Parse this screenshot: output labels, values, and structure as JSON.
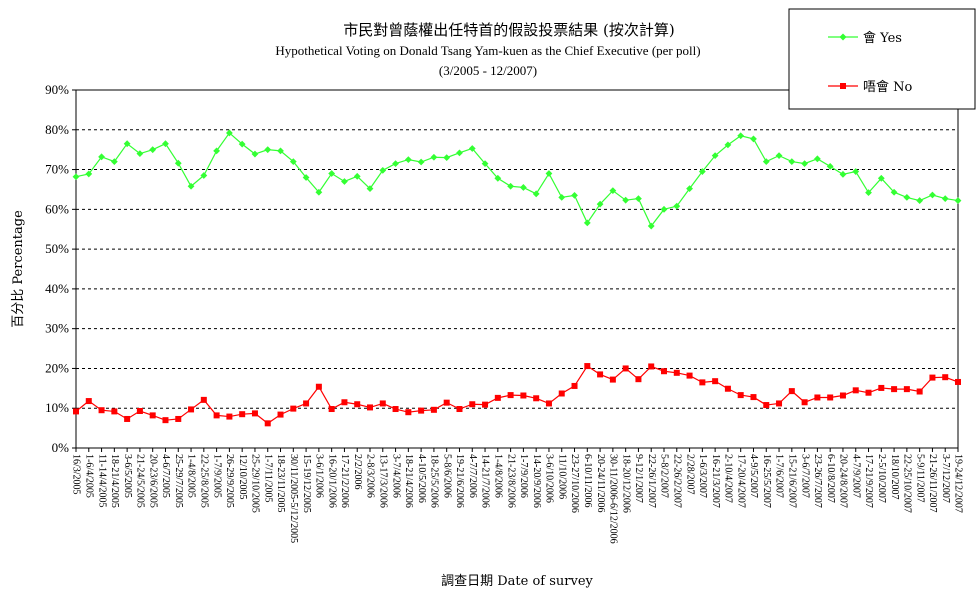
{
  "chart_data": {
    "type": "line",
    "title": "市民對曾蔭權出任特首的假設投票結果 (按次計算)",
    "subtitle": "Hypothetical Voting on Donald Tsang Yam-kuen as the Chief Executive (per poll)",
    "period": "(3/2005 - 12/2007)",
    "xlabel": "調查日期 Date of survey",
    "ylabel": "百分比 Percentage",
    "ylim": [
      0,
      90
    ],
    "yticks": [
      "0%",
      "10%",
      "20%",
      "30%",
      "40%",
      "50%",
      "60%",
      "70%",
      "80%",
      "90%"
    ],
    "grid": "horizontal dashed",
    "legend_position": "top-right",
    "categories": [
      "16/3/2005",
      "1-6/4/2005",
      "11-14/4/2005",
      "18-21/4/2005",
      "3-6/5/2005",
      "21-24/5/2005",
      "20-23/6/2005",
      "4-6/7/2005",
      "25-29/7/2005",
      "1-4/8/2005",
      "22-25/8/2005",
      "1-7/9/2005",
      "26-29/9/2005",
      "12/10/2005",
      "25-29/10/2005",
      "1-7/11/2005",
      "18-23/11/2005",
      "30/11/2005-5/12/2005",
      "15-19/12/2005",
      "3-6/1/2006",
      "16-20/1/2006",
      "17-21/2/2006",
      "2/2/2006",
      "2-8/3/2006",
      "13-17/3/2006",
      "3-7/4/2006",
      "18-21/4/2006",
      "4-10/5/2006",
      "18-25/5/2006",
      "5-8/6/2006",
      "19-21/6/2006",
      "4-7/7/2006",
      "14-21/7/2006",
      "1-4/8/2006",
      "21-23/8/2006",
      "1-7/9/2006",
      "14-20/9/2006",
      "3-6/10/2006",
      "11/10/2006",
      "23-27/10/2006",
      "6-10/11/2006",
      "20-24/11/2006",
      "30-11/2006-6/12/2006",
      "18-20/12/2006",
      "9-12/1/2007",
      "22-26/1/2007",
      "5-8/2/2007",
      "22-26/2/2007",
      "2/28/2007",
      "1-6/3/2007",
      "16-21/3/2007",
      "2-10/4/2007",
      "17-20/4/2007",
      "4-9/5/2007",
      "16-25/5/2007",
      "1-7/6/2007",
      "15-21/6/2007",
      "3-6/7/2007",
      "23-26/7/2007",
      "6-10/8/2007",
      "20-24/8/2007",
      "4-7/9/2007",
      "17-21/9/2007",
      "2-5/10/2007",
      "18/10/2007",
      "22-25/10/2007",
      "5-9/11/2007",
      "21-26/11/2007",
      "3-7/12/2007",
      "19-24/12/2007"
    ],
    "series": [
      {
        "name": "會 Yes",
        "color": "#33ff33",
        "marker": "diamond",
        "values": [
          68.2,
          68.9,
          73.2,
          72.0,
          76.5,
          74.0,
          75.0,
          76.5,
          71.6,
          65.8,
          68.5,
          74.7,
          79.2,
          76.4,
          73.9,
          75.0,
          74.7,
          72.0,
          68.0,
          64.3,
          69.0,
          67.0,
          68.3,
          65.2,
          69.8,
          71.5,
          72.5,
          71.9,
          73.1,
          73.0,
          74.2,
          75.3,
          71.5,
          67.8,
          65.8,
          65.5,
          63.9,
          69.0,
          63.0,
          63.5,
          56.6,
          61.3,
          64.7,
          62.3,
          62.7,
          55.8,
          60.0,
          60.8,
          65.2,
          69.5,
          73.5,
          76.2,
          78.5,
          77.7,
          72.0,
          73.5,
          72.0,
          71.5,
          72.7,
          70.8,
          68.8,
          69.5,
          64.2,
          67.8,
          64.3,
          63.0,
          62.2,
          63.6,
          62.7,
          62.2
        ]
      },
      {
        "name": "唔會 No",
        "color": "#ff0000",
        "marker": "square",
        "values": [
          9.2,
          11.8,
          9.5,
          9.2,
          7.3,
          9.3,
          8.2,
          7.0,
          7.3,
          9.7,
          12.1,
          8.2,
          7.9,
          8.5,
          8.7,
          6.2,
          8.4,
          9.9,
          11.2,
          15.4,
          9.8,
          11.5,
          11.0,
          10.2,
          11.2,
          9.8,
          9.0,
          9.4,
          9.6,
          11.4,
          9.8,
          11.0,
          10.9,
          12.6,
          13.3,
          13.2,
          12.5,
          11.2,
          13.7,
          15.6,
          20.6,
          18.5,
          17.2,
          20.0,
          17.3,
          20.5,
          19.3,
          18.9,
          18.2,
          16.5,
          16.8,
          14.9,
          13.3,
          12.8,
          10.8,
          11.2,
          14.3,
          11.5,
          12.7,
          12.7,
          13.2,
          14.5,
          13.9,
          15.1,
          14.8,
          14.8,
          14.2,
          17.7,
          17.8,
          16.6
        ]
      }
    ]
  }
}
